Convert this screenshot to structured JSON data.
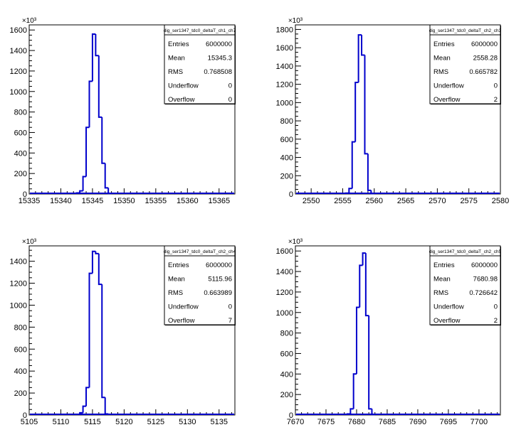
{
  "chart_data": [
    {
      "type": "bar",
      "histogram": true,
      "title": "",
      "xlabel": "",
      "ylabel": "",
      "exponent_label": "×10³",
      "y_scale": 1000,
      "xlim": [
        15335,
        15367.5
      ],
      "ylim": [
        0,
        1650
      ],
      "xticks": [
        "15335",
        "15340",
        "15345",
        "15350",
        "15355",
        "15360",
        "15365"
      ],
      "xtick_values": [
        15335,
        15340,
        15345,
        15350,
        15355,
        15360,
        15365
      ],
      "yticks": [
        "0",
        "200",
        "400",
        "600",
        "800",
        "1000",
        "1200",
        "1400",
        "1600"
      ],
      "ytick_values": [
        0,
        200,
        400,
        600,
        800,
        1000,
        1200,
        1400,
        1600
      ],
      "color": "#0000cc",
      "bin_edges": [
        15342.5,
        15343,
        15343.5,
        15344,
        15344.5,
        15345,
        15345.5,
        15346,
        15346.5,
        15347,
        15347.5,
        15348
      ],
      "values": [
        10,
        30,
        170,
        650,
        1100,
        1560,
        1350,
        750,
        300,
        60,
        5
      ],
      "stats": {
        "name": "dig_ser1347_tdc0_deltaT_ch1_ch7",
        "rows": [
          {
            "label": "Entries",
            "value": "6000000"
          },
          {
            "label": "Mean",
            "value": "15345.3"
          },
          {
            "label": "RMS",
            "value": "0.768508"
          },
          {
            "label": "Underflow",
            "value": "0"
          },
          {
            "label": "Overflow",
            "value": "0"
          }
        ]
      }
    },
    {
      "type": "bar",
      "histogram": true,
      "title": "",
      "xlabel": "",
      "ylabel": "",
      "exponent_label": "×10³",
      "y_scale": 1000,
      "xlim": [
        2547.5,
        2580
      ],
      "ylim": [
        0,
        1850
      ],
      "xticks": [
        "2550",
        "2555",
        "2560",
        "2565",
        "2570",
        "2575",
        "2580"
      ],
      "xtick_values": [
        2550,
        2555,
        2560,
        2565,
        2570,
        2575,
        2580
      ],
      "yticks": [
        "0",
        "200",
        "400",
        "600",
        "800",
        "1000",
        "1200",
        "1400",
        "1600",
        "1800"
      ],
      "ytick_values": [
        0,
        200,
        400,
        600,
        800,
        1000,
        1200,
        1400,
        1600,
        1800
      ],
      "color": "#0000cc",
      "bin_edges": [
        2555.5,
        2556,
        2556.5,
        2557,
        2557.5,
        2558,
        2558.5,
        2559,
        2559.5,
        2560
      ],
      "values": [
        10,
        60,
        570,
        1220,
        1740,
        1520,
        440,
        40,
        5
      ],
      "stats": {
        "name": "dig_ser1347_tdc0_deltaT_ch2_ch3",
        "rows": [
          {
            "label": "Entries",
            "value": "6000000"
          },
          {
            "label": "Mean",
            "value": "2558.28"
          },
          {
            "label": "RMS",
            "value": "0.665782"
          },
          {
            "label": "Underflow",
            "value": "0"
          },
          {
            "label": "Overflow",
            "value": "2"
          }
        ]
      }
    },
    {
      "type": "bar",
      "histogram": true,
      "title": "",
      "xlabel": "",
      "ylabel": "",
      "exponent_label": "×10³",
      "y_scale": 1000,
      "xlim": [
        5105,
        5137.5
      ],
      "ylim": [
        0,
        1540
      ],
      "xticks": [
        "5105",
        "5110",
        "5115",
        "5120",
        "5125",
        "5130",
        "5135"
      ],
      "xtick_values": [
        5105,
        5110,
        5115,
        5120,
        5125,
        5130,
        5135
      ],
      "yticks": [
        "0",
        "200",
        "400",
        "600",
        "800",
        "1000",
        "1200",
        "1400"
      ],
      "ytick_values": [
        0,
        200,
        400,
        600,
        800,
        1000,
        1200,
        1400
      ],
      "color": "#0000cc",
      "bin_edges": [
        5113,
        5113.5,
        5114,
        5114.5,
        5115,
        5115.5,
        5116,
        5116.5,
        5117,
        5117.5
      ],
      "values": [
        20,
        80,
        250,
        1290,
        1490,
        1470,
        1190,
        160,
        10
      ],
      "stats": {
        "name": "dig_ser1347_tdc0_deltaT_ch2_ch4",
        "rows": [
          {
            "label": "Entries",
            "value": "6000000"
          },
          {
            "label": "Mean",
            "value": "5115.96"
          },
          {
            "label": "RMS",
            "value": "0.663989"
          },
          {
            "label": "Underflow",
            "value": "0"
          },
          {
            "label": "Overflow",
            "value": "7"
          }
        ]
      }
    },
    {
      "type": "bar",
      "histogram": true,
      "title": "",
      "xlabel": "",
      "ylabel": "",
      "exponent_label": "×10³",
      "y_scale": 1000,
      "xlim": [
        7670,
        7703.5
      ],
      "ylim": [
        0,
        1650
      ],
      "xticks": [
        "7670",
        "7675",
        "7680",
        "7685",
        "7690",
        "7695",
        "7700"
      ],
      "xtick_values": [
        7670,
        7675,
        7680,
        7685,
        7690,
        7695,
        7700
      ],
      "yticks": [
        "0",
        "200",
        "400",
        "600",
        "800",
        "1000",
        "1200",
        "1400",
        "1600"
      ],
      "ytick_values": [
        0,
        200,
        400,
        600,
        800,
        1000,
        1200,
        1400,
        1600
      ],
      "color": "#0000cc",
      "bin_edges": [
        7678.5,
        7679,
        7679.5,
        7680,
        7680.5,
        7681,
        7681.5,
        7682,
        7682.5,
        7683
      ],
      "values": [
        10,
        60,
        400,
        1050,
        1460,
        1580,
        970,
        60,
        5
      ],
      "stats": {
        "name": "dig_ser1347_tdc0_deltaT_ch2_ch5",
        "rows": [
          {
            "label": "Entries",
            "value": "6000000"
          },
          {
            "label": "Mean",
            "value": "7680.98"
          },
          {
            "label": "RMS",
            "value": "0.726642"
          },
          {
            "label": "Underflow",
            "value": "0"
          },
          {
            "label": "Overflow",
            "value": "2"
          }
        ]
      }
    }
  ]
}
